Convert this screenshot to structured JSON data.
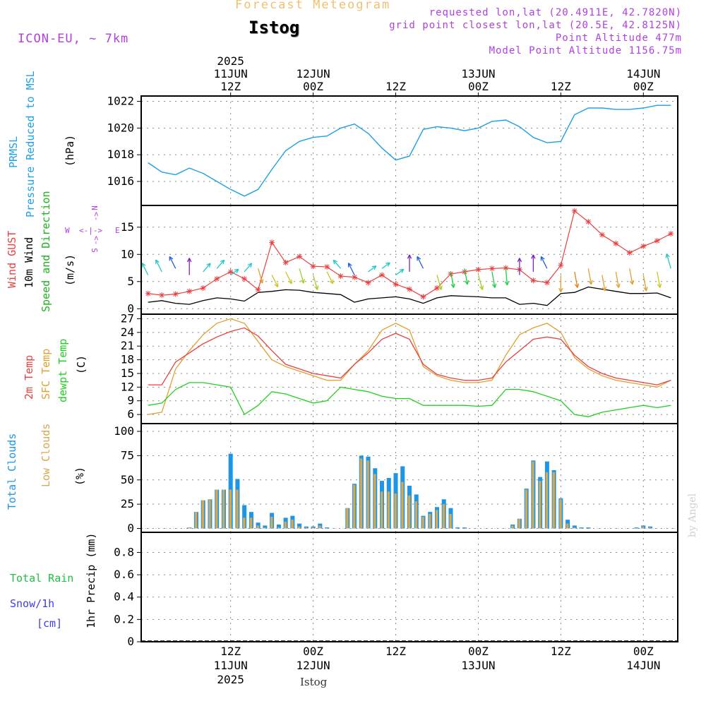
{
  "header": {
    "title": "Forecast Meteogram",
    "station": "Istog",
    "model": "ICON-EU, ~ 7km",
    "requested": "requested lon,lat (20.4911E, 42.7820N)",
    "gridpoint": "grid point closest lon,lat (20.5E, 42.8125N)",
    "altitude": "Point Altitude 477m",
    "model_altitude": "Model Point Altitude 1156.75m"
  },
  "time_axis": {
    "top_labels": [
      {
        "x": 12,
        "lines": [
          "2025",
          "11JUN",
          "12Z"
        ]
      },
      {
        "x": 24,
        "lines": [
          "12JUN",
          "00Z"
        ]
      },
      {
        "x": 36,
        "lines": [
          "12Z"
        ]
      },
      {
        "x": 48,
        "lines": [
          "13JUN",
          "00Z"
        ]
      },
      {
        "x": 60,
        "lines": [
          "12Z"
        ]
      },
      {
        "x": 72,
        "lines": [
          "14JUN",
          "00Z"
        ]
      }
    ],
    "bottom_labels": [
      {
        "x": 12,
        "lines": [
          "12Z",
          "11JUN",
          "2025"
        ]
      },
      {
        "x": 24,
        "lines": [
          "00Z",
          "12JUN"
        ]
      },
      {
        "x": 36,
        "lines": [
          "12Z"
        ]
      },
      {
        "x": 48,
        "lines": [
          "00Z",
          "13JUN"
        ]
      },
      {
        "x": 60,
        "lines": [
          "12Z"
        ]
      },
      {
        "x": 72,
        "lines": [
          "00Z",
          "14JUN"
        ]
      }
    ],
    "footer_station": "Istog",
    "credit": "by Angel"
  },
  "colors": {
    "pressure": "#1ea0e6",
    "gust": "#e84040",
    "wind": "#000000",
    "temp2m": "#e84040",
    "sfc": "#e0a030",
    "dewpt": "#20d020",
    "total_clouds": "#1e96e6",
    "low_clouds": "#d8a850",
    "rain": "#20c040",
    "snow": "#4040e0",
    "compass": "#b040e0"
  },
  "chart_data": [
    {
      "type": "line",
      "panel": "pressure",
      "labels": [
        "PRMSL",
        "Pressure Reduced to MSL",
        "(hPa)"
      ],
      "ylim": [
        1014.2,
        1022.4
      ],
      "yticks": [
        1016,
        1018,
        1020,
        1022
      ],
      "series": [
        {
          "name": "PRMSL",
          "x": [
            0,
            2,
            4,
            6,
            8,
            10,
            12,
            14,
            16,
            18,
            20,
            22,
            24,
            26,
            28,
            30,
            32,
            34,
            36,
            38,
            40,
            42,
            44,
            46,
            48,
            50,
            52,
            54,
            56,
            58,
            60,
            62,
            64,
            66,
            68,
            70,
            72,
            74,
            76
          ],
          "values": [
            1017.4,
            1016.7,
            1016.5,
            1017.0,
            1016.6,
            1016.0,
            1015.4,
            1014.9,
            1015.4,
            1016.9,
            1018.3,
            1019.0,
            1019.3,
            1019.4,
            1020.0,
            1020.3,
            1019.6,
            1018.5,
            1017.6,
            1017.9,
            1019.9,
            1020.1,
            1020.0,
            1019.8,
            1020.0,
            1020.5,
            1020.6,
            1020.1,
            1019.3,
            1018.9,
            1019.0,
            1021.0,
            1021.5,
            1021.5,
            1021.4,
            1021.4,
            1021.5,
            1021.7,
            1021.7
          ]
        }
      ]
    },
    {
      "type": "line",
      "panel": "wind",
      "labels": [
        "Wind GUST",
        "10m Wind",
        "Speed and Direction",
        "(m/s)"
      ],
      "compass": [
        "N",
        "W",
        "E",
        "S"
      ],
      "ylim": [
        -1,
        19
      ],
      "yticks": [
        0,
        5,
        10,
        15
      ],
      "series": [
        {
          "name": "Wind GUST",
          "x": [
            0,
            2,
            4,
            6,
            8,
            10,
            12,
            14,
            16,
            18,
            20,
            22,
            24,
            26,
            28,
            30,
            32,
            34,
            36,
            38,
            40,
            42,
            44,
            46,
            48,
            50,
            52,
            54,
            56,
            58,
            60,
            62,
            64,
            66,
            68,
            70,
            72,
            74,
            76
          ],
          "values": [
            2.8,
            2.5,
            2.7,
            3.2,
            3.8,
            5.5,
            6.8,
            5.5,
            3.5,
            12.2,
            8.5,
            9.6,
            7.8,
            7.7,
            6.0,
            5.8,
            4.8,
            6.2,
            4.5,
            3.6,
            2.2,
            3.8,
            6.4,
            6.8,
            7.2,
            7.4,
            7.5,
            7.2,
            5.2,
            4.8,
            8.0,
            18.0,
            16.0,
            13.6,
            12.0,
            10.3,
            11.5,
            12.5,
            13.8
          ]
        },
        {
          "name": "10m Wind",
          "x": [
            0,
            2,
            4,
            6,
            8,
            10,
            12,
            14,
            16,
            18,
            20,
            22,
            24,
            26,
            28,
            30,
            32,
            34,
            36,
            38,
            40,
            42,
            44,
            46,
            48,
            50,
            52,
            54,
            56,
            58,
            60,
            62,
            64,
            66,
            68,
            70,
            72,
            74,
            76
          ],
          "values": [
            1.2,
            1.5,
            1.0,
            0.8,
            1.5,
            2.0,
            1.8,
            1.4,
            3.0,
            3.2,
            3.5,
            3.4,
            3.0,
            2.8,
            2.6,
            1.2,
            1.8,
            2.0,
            2.2,
            1.8,
            1.0,
            2.0,
            2.4,
            2.3,
            2.2,
            2.0,
            2.0,
            0.8,
            1.0,
            0.6,
            2.8,
            3.0,
            4.0,
            3.6,
            3.2,
            2.8,
            2.8,
            2.9,
            2.0
          ]
        }
      ]
    },
    {
      "type": "line",
      "panel": "temperature",
      "labels": [
        "2m Temp",
        "SFC Temp",
        "dewpt Temp",
        "(C)"
      ],
      "ylim": [
        4,
        28
      ],
      "yticks": [
        6,
        9,
        12,
        15,
        18,
        21,
        24,
        27
      ],
      "series": [
        {
          "name": "2m Temp",
          "x": [
            0,
            2,
            4,
            6,
            8,
            10,
            12,
            14,
            16,
            18,
            20,
            22,
            24,
            26,
            28,
            30,
            32,
            34,
            36,
            38,
            40,
            42,
            44,
            46,
            48,
            50,
            52,
            54,
            56,
            58,
            60,
            62,
            64,
            66,
            68,
            70,
            72,
            74,
            76
          ],
          "values": [
            12.5,
            12.5,
            17.5,
            19.5,
            21.5,
            23.0,
            24.2,
            25.0,
            23.2,
            20.0,
            17.0,
            16.0,
            15.0,
            14.5,
            14.0,
            17.0,
            19.5,
            22.5,
            23.8,
            22.5,
            17.0,
            14.8,
            14.0,
            13.5,
            13.5,
            14.0,
            17.5,
            20.0,
            22.5,
            23.0,
            22.5,
            19.0,
            16.5,
            15.0,
            14.0,
            13.5,
            13.0,
            12.5,
            13.5
          ]
        },
        {
          "name": "SFC Temp",
          "x": [
            0,
            2,
            4,
            6,
            8,
            10,
            12,
            14,
            16,
            18,
            20,
            22,
            24,
            26,
            28,
            30,
            32,
            34,
            36,
            38,
            40,
            42,
            44,
            46,
            48,
            50,
            52,
            54,
            56,
            58,
            60,
            62,
            64,
            66,
            68,
            70,
            72,
            74,
            76
          ],
          "values": [
            6.0,
            6.5,
            16.0,
            20.0,
            23.5,
            26.0,
            27.0,
            26.0,
            22.0,
            18.0,
            16.5,
            15.5,
            14.5,
            13.5,
            13.5,
            17.0,
            20.0,
            24.5,
            26.0,
            24.5,
            16.5,
            14.5,
            13.5,
            13.0,
            13.0,
            13.5,
            19.0,
            23.5,
            25.0,
            26.0,
            24.0,
            18.5,
            16.0,
            14.5,
            13.5,
            13.0,
            12.5,
            12.0,
            13.5
          ]
        },
        {
          "name": "dewpt Temp",
          "x": [
            0,
            2,
            4,
            6,
            8,
            10,
            12,
            14,
            16,
            18,
            20,
            22,
            24,
            26,
            28,
            30,
            32,
            34,
            36,
            38,
            40,
            42,
            44,
            46,
            48,
            50,
            52,
            54,
            56,
            58,
            60,
            62,
            64,
            66,
            68,
            70,
            72,
            74,
            76
          ],
          "values": [
            8.0,
            8.5,
            11.5,
            13.0,
            13.0,
            12.5,
            12.0,
            6.0,
            8.0,
            11.0,
            10.5,
            9.5,
            8.5,
            9.0,
            12.0,
            11.5,
            11.0,
            10.0,
            9.5,
            9.5,
            8.0,
            8.0,
            8.0,
            8.0,
            7.8,
            8.0,
            11.5,
            11.5,
            11.0,
            10.0,
            9.0,
            6.0,
            5.5,
            6.5,
            7.0,
            7.5,
            8.0,
            7.5,
            8.0
          ]
        }
      ]
    },
    {
      "type": "bar",
      "panel": "clouds",
      "labels": [
        "Total Clouds",
        "Low Clouds",
        "(%)"
      ],
      "ylim": [
        -4,
        108
      ],
      "yticks": [
        0,
        25,
        50,
        75,
        100
      ],
      "series": [
        {
          "name": "Total Clouds",
          "x": [
            6,
            7,
            8,
            9,
            10,
            11,
            12,
            13,
            14,
            15,
            16,
            17,
            18,
            19,
            20,
            21,
            22,
            23,
            24,
            25,
            26,
            29,
            30,
            31,
            32,
            33,
            34,
            35,
            36,
            37,
            38,
            39,
            40,
            41,
            42,
            43,
            44,
            45,
            46,
            53,
            54,
            55,
            56,
            57,
            58,
            59,
            60,
            61,
            62,
            63,
            64,
            71,
            72,
            73
          ],
          "values": [
            1,
            17,
            29,
            30,
            40,
            40,
            77,
            51,
            24,
            17,
            6,
            3,
            16,
            4,
            11,
            13,
            5,
            2,
            2,
            5,
            1,
            21,
            46,
            75,
            74,
            62,
            49,
            52,
            57,
            64,
            44,
            35,
            13,
            17,
            22,
            30,
            21,
            1,
            1,
            4,
            10,
            41,
            70,
            53,
            69,
            60,
            31,
            9,
            3,
            1,
            1,
            1,
            3,
            2
          ]
        },
        {
          "name": "Low Clouds",
          "x": [
            6,
            7,
            8,
            9,
            10,
            11,
            12,
            13,
            14,
            15,
            16,
            17,
            18,
            19,
            20,
            21,
            22,
            23,
            24,
            25,
            26,
            29,
            30,
            31,
            32,
            33,
            34,
            35,
            36,
            37,
            38,
            39,
            40,
            41,
            42,
            43,
            44,
            45,
            46,
            53,
            54,
            55,
            56,
            57,
            58,
            59,
            60,
            61,
            62,
            63,
            64,
            71,
            72,
            73
          ],
          "values": [
            1,
            17,
            29,
            30,
            40,
            40,
            40,
            40,
            11,
            11,
            3,
            1,
            12,
            1,
            7,
            9,
            2,
            1,
            1,
            3,
            0,
            21,
            45,
            72,
            70,
            56,
            38,
            38,
            36,
            48,
            34,
            28,
            12,
            15,
            19,
            25,
            15,
            0,
            0,
            3,
            10,
            40,
            69,
            49,
            58,
            58,
            30,
            5,
            1,
            0,
            0,
            0,
            2,
            1
          ]
        }
      ]
    },
    {
      "type": "bar",
      "panel": "precipitation",
      "labels": [
        "Total  Rain",
        "Snow/1h",
        "[cm]",
        "1hr Precip (mm)"
      ],
      "ylim": [
        0,
        0.98
      ],
      "yticks": [
        0,
        0.2,
        0.4,
        0.6,
        0.8
      ],
      "ytick_labels": [
        "0",
        "0.2",
        "0.4",
        "0.6",
        "0.8"
      ],
      "series": [
        {
          "name": "Total  Rain",
          "x": [],
          "values": []
        },
        {
          "name": "Snow/1h",
          "x": [],
          "values": []
        }
      ]
    }
  ]
}
